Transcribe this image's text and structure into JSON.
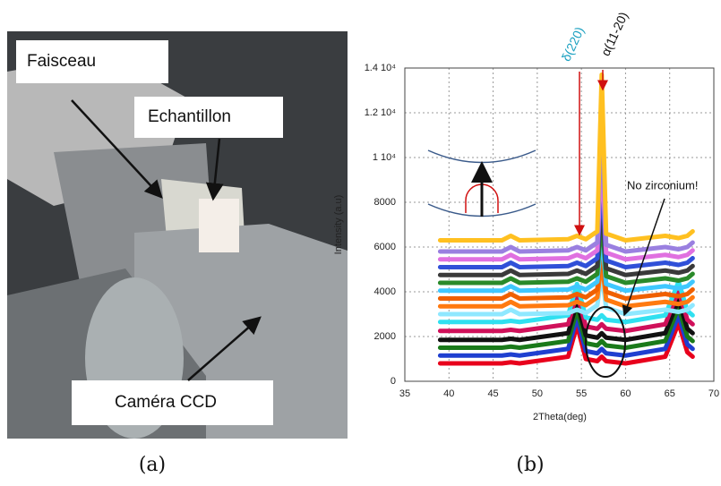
{
  "photo": {
    "labels": [
      "Faisceau",
      "Echantillon",
      "Caméra CCD"
    ]
  },
  "captions": [
    "(a)",
    "(b)"
  ],
  "chart_data": {
    "type": "line",
    "x_label": "2Theta(deg)",
    "y_label": "Intensity (a.u)",
    "annotations": [
      "δ(220)",
      "α(11-20)",
      "No zirconium!"
    ],
    "x": [
      39,
      46,
      47,
      48,
      53.5,
      54.5,
      55.5,
      56.8,
      57.3,
      57.8,
      60,
      64.5,
      66,
      67,
      67.6
    ],
    "xlim": [
      35,
      70
    ],
    "xticks": [
      35,
      40,
      45,
      50,
      55,
      60,
      65,
      70
    ],
    "ylim": [
      0,
      14000
    ],
    "yticks": [
      0,
      2000,
      4000,
      6000,
      8000,
      {
        "value": 10000,
        "label": "1 10⁴"
      },
      {
        "value": 12000,
        "label": "1.2 10⁴"
      },
      {
        "value": 14000,
        "label": "1.4 10⁴"
      }
    ],
    "grid": true,
    "series": [
      {
        "color": "#e8001c",
        "values": [
          800,
          800,
          850,
          800,
          1100,
          2500,
          1000,
          900,
          1100,
          900,
          800,
          1100,
          2600,
          1300,
          1100
        ]
      },
      {
        "color": "#1f3fd0",
        "values": [
          1150,
          1150,
          1200,
          1150,
          1450,
          2850,
          1350,
          1250,
          1450,
          1250,
          1150,
          1450,
          2950,
          1650,
          1450
        ]
      },
      {
        "color": "#1a7a1a",
        "values": [
          1500,
          1500,
          1550,
          1500,
          1800,
          3200,
          1700,
          1600,
          1800,
          1600,
          1500,
          1800,
          3300,
          2000,
          1800
        ]
      },
      {
        "color": "#111111",
        "values": [
          1850,
          1850,
          1900,
          1850,
          2150,
          3550,
          2050,
          1950,
          2150,
          1950,
          1850,
          2150,
          3650,
          2350,
          2150
        ]
      },
      {
        "color": "#d0105a",
        "values": [
          2250,
          2250,
          2300,
          2250,
          2550,
          3950,
          2450,
          2350,
          2550,
          2350,
          2250,
          2550,
          4050,
          2750,
          2550
        ]
      },
      {
        "color": "#30e0f0",
        "values": [
          2650,
          2650,
          2700,
          2650,
          2950,
          4350,
          2850,
          2750,
          2950,
          2750,
          2650,
          2950,
          4450,
          3150,
          2950
        ]
      },
      {
        "color": "#8fe8ff",
        "values": [
          3000,
          3000,
          3200,
          3000,
          3050,
          3200,
          3050,
          3400,
          4800,
          3300,
          3000,
          3200,
          3100,
          3200,
          3400
        ]
      },
      {
        "color": "#ff7a10",
        "values": [
          3350,
          3350,
          3550,
          3350,
          3400,
          3550,
          3400,
          3750,
          5400,
          3650,
          3350,
          3550,
          3450,
          3550,
          3750
        ]
      },
      {
        "color": "#f06000",
        "values": [
          3700,
          3700,
          3900,
          3700,
          3750,
          3900,
          3750,
          4100,
          6000,
          4000,
          3700,
          3900,
          3800,
          3900,
          4100
        ]
      },
      {
        "color": "#40c8ff",
        "values": [
          4050,
          4050,
          4250,
          4050,
          4100,
          4250,
          4100,
          4450,
          6600,
          4350,
          4050,
          4250,
          4150,
          4250,
          4450
        ]
      },
      {
        "color": "#2a8a2a",
        "values": [
          4400,
          4400,
          4600,
          4400,
          4450,
          4600,
          4450,
          4800,
          7400,
          4700,
          4400,
          4600,
          4500,
          4600,
          4800
        ]
      },
      {
        "color": "#3a3a3a",
        "values": [
          4750,
          4750,
          4950,
          4750,
          4800,
          4950,
          4800,
          5150,
          8200,
          5050,
          4750,
          4950,
          4850,
          4950,
          5150
        ]
      },
      {
        "color": "#3050d8",
        "values": [
          5100,
          5100,
          5300,
          5100,
          5150,
          5300,
          5150,
          5500,
          9200,
          5400,
          5100,
          5300,
          5200,
          5300,
          5500
        ]
      },
      {
        "color": "#e070e0",
        "values": [
          5450,
          5450,
          5650,
          5450,
          5500,
          5650,
          5500,
          5850,
          10400,
          5750,
          5450,
          5650,
          5550,
          5650,
          5850
        ]
      },
      {
        "color": "#9a80e0",
        "values": [
          5800,
          5800,
          6000,
          5800,
          5850,
          6000,
          5850,
          6200,
          12000,
          6100,
          5800,
          6000,
          5900,
          6000,
          6200
        ]
      },
      {
        "color": "#ffc020",
        "values": [
          6300,
          6300,
          6500,
          6300,
          6350,
          6500,
          6350,
          6700,
          13700,
          6600,
          6300,
          6500,
          6400,
          6500,
          6700
        ]
      }
    ]
  }
}
